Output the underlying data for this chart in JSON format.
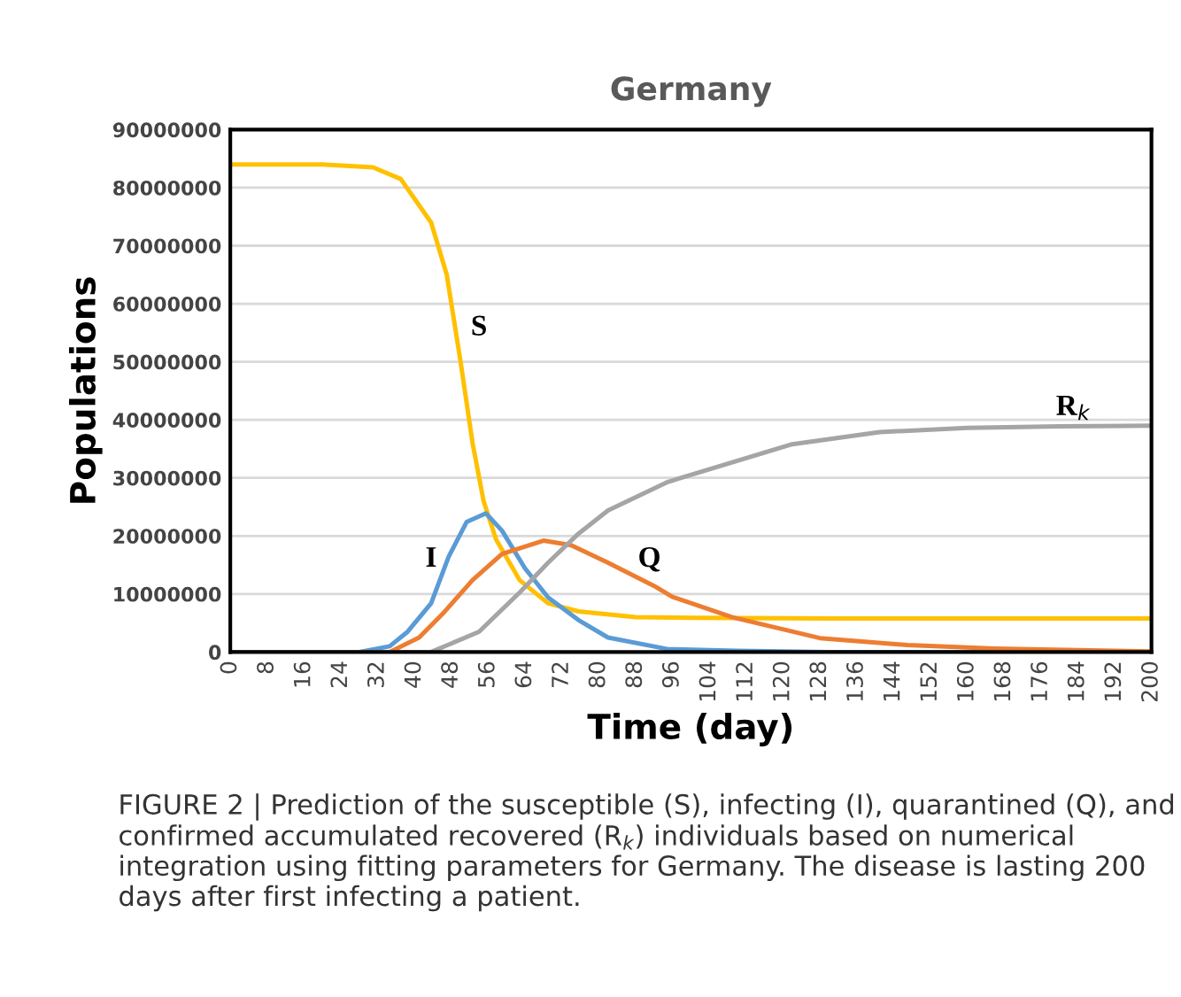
{
  "chart_data": {
    "type": "line",
    "title": "Germany",
    "xlabel": "Time (day)",
    "ylabel": "Populations",
    "xlim": [
      0,
      200
    ],
    "xticks": [
      0,
      8,
      16,
      24,
      32,
      40,
      48,
      56,
      64,
      72,
      80,
      88,
      96,
      104,
      112,
      120,
      128,
      136,
      144,
      152,
      160,
      168,
      176,
      184,
      192,
      200
    ],
    "ylim": [
      0,
      90000000
    ],
    "yticks": [
      0,
      10000000,
      20000000,
      30000000,
      40000000,
      50000000,
      60000000,
      70000000,
      80000000,
      90000000
    ],
    "grid": "y",
    "marker": "none",
    "line_style": "solid",
    "series": [
      {
        "name": "S",
        "color": "#ffc000",
        "x": [
          0,
          20,
          31,
          37,
          43.6,
          47,
          50,
          52.6,
          55,
          57.7,
          62.8,
          69,
          75.6,
          88,
          100,
          130,
          160,
          200
        ],
        "values": [
          84000000,
          84000000,
          83500000,
          81500000,
          74000000,
          65000000,
          50000000,
          36000000,
          26000000,
          19400000,
          12400000,
          8400000,
          7000000,
          6000000,
          5900000,
          5800000,
          5800000,
          5800000
        ]
      },
      {
        "name": "I",
        "color": "#5b9bd5",
        "x": [
          0,
          28,
          34.6,
          38.5,
          43.6,
          47.4,
          51.3,
          55.5,
          59,
          64,
          69,
          75.6,
          82,
          95,
          110,
          130,
          200
        ],
        "values": [
          0,
          0,
          1000000,
          3500000,
          8400000,
          16400000,
          22400000,
          23900000,
          20900000,
          14400000,
          9400000,
          5500000,
          2500000,
          500000,
          200000,
          0,
          0
        ]
      },
      {
        "name": "Q",
        "color": "#ed7d31",
        "x": [
          0,
          34.6,
          41,
          46,
          52.6,
          59,
          68,
          74,
          82,
          92,
          96,
          109,
          128,
          147,
          166,
          200
        ],
        "values": [
          0,
          0,
          2500000,
          6500000,
          12400000,
          16900000,
          19200000,
          18400000,
          15400000,
          11400000,
          9500000,
          6000000,
          2400000,
          1200000,
          600000,
          100000
        ]
      },
      {
        "name": "R$_{k}$",
        "color": "#a5a5a5",
        "x": [
          0,
          43.6,
          54,
          63,
          69,
          75.6,
          82,
          95,
          109,
          122,
          141,
          160,
          180,
          200
        ],
        "values": [
          0,
          0,
          3500000,
          10400000,
          15400000,
          20400000,
          24400000,
          29300000,
          32700000,
          35800000,
          37900000,
          38600000,
          38900000,
          39000000
        ]
      }
    ],
    "annotations": [
      "FIGURE 2 | Prediction of the susceptible (S), infecting (I), quarantined (Q), and confirmed accumulated recovered (R$_{k}$) individuals based on numerical integration using fitting parameters for Germany. The disease is lasting 200 days after first infecting a patient."
    ]
  }
}
